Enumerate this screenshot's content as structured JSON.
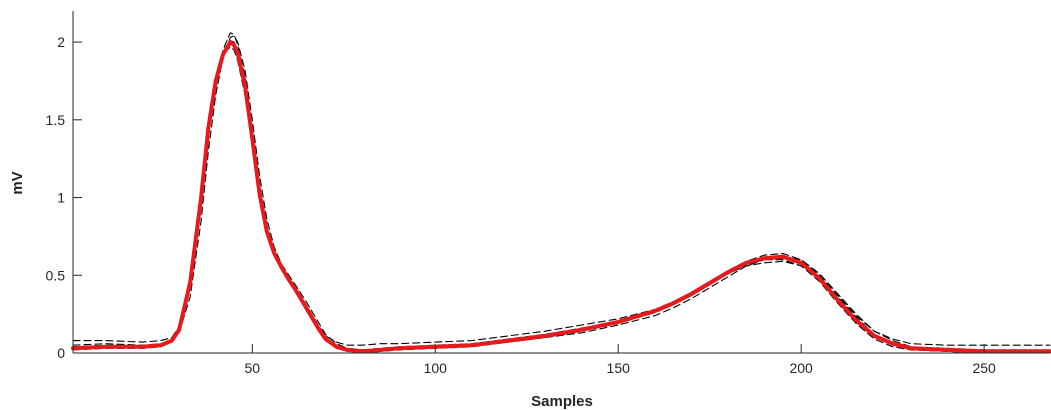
{
  "chart_data": {
    "type": "line",
    "title": "",
    "xlabel": "Samples",
    "ylabel": "mV",
    "xlim": [
      1,
      268
    ],
    "ylim": [
      0,
      2.2
    ],
    "xticks": [
      50,
      100,
      150,
      200,
      250
    ],
    "xtick_labels": [
      "50",
      "100",
      "150",
      "200",
      "250"
    ],
    "yticks": [
      0,
      0.5,
      1,
      1.5,
      2
    ],
    "ytick_labels": [
      "0",
      "0.5",
      "1",
      "1.5",
      "2"
    ],
    "grid": false,
    "legend": "none",
    "colors": {
      "mean": "#e8191d",
      "beats": "#000000",
      "axis": "#262626"
    },
    "series": [
      {
        "style": "solid-red-thick",
        "x": [
          1,
          10,
          20,
          25,
          28,
          30,
          33,
          36,
          38,
          40,
          42,
          44,
          45,
          46,
          48,
          50,
          52,
          54,
          56,
          58,
          60,
          62,
          65,
          68,
          70,
          73,
          76,
          80,
          85,
          90,
          100,
          110,
          120,
          130,
          140,
          150,
          160,
          165,
          170,
          175,
          180,
          185,
          190,
          195,
          200,
          205,
          210,
          215,
          220,
          225,
          230,
          240,
          250,
          260,
          268
        ],
        "y": [
          0.03,
          0.04,
          0.04,
          0.05,
          0.08,
          0.15,
          0.45,
          1.0,
          1.45,
          1.75,
          1.92,
          2.0,
          1.98,
          1.93,
          1.72,
          1.38,
          1.02,
          0.78,
          0.64,
          0.55,
          0.47,
          0.4,
          0.28,
          0.16,
          0.09,
          0.04,
          0.02,
          0.01,
          0.02,
          0.03,
          0.04,
          0.05,
          0.08,
          0.11,
          0.15,
          0.2,
          0.27,
          0.32,
          0.38,
          0.45,
          0.52,
          0.58,
          0.61,
          0.62,
          0.58,
          0.48,
          0.34,
          0.21,
          0.11,
          0.06,
          0.03,
          0.02,
          0.01,
          0.01,
          0.01
        ]
      },
      {
        "style": "dashed-black",
        "x": [
          1,
          10,
          20,
          25,
          28,
          30,
          33,
          36,
          38,
          40,
          42,
          44,
          45,
          46,
          48,
          50,
          52,
          54,
          56,
          58,
          60,
          62,
          65,
          68,
          70,
          73,
          76,
          80,
          85,
          90,
          100,
          110,
          120,
          130,
          140,
          150,
          160,
          165,
          170,
          175,
          180,
          185,
          190,
          195,
          200,
          205,
          210,
          215,
          220,
          225,
          230,
          240,
          250,
          260,
          268
        ],
        "y": [
          0.08,
          0.08,
          0.07,
          0.08,
          0.1,
          0.17,
          0.44,
          0.95,
          1.4,
          1.72,
          1.95,
          2.06,
          2.05,
          1.98,
          1.78,
          1.44,
          1.08,
          0.82,
          0.66,
          0.56,
          0.48,
          0.41,
          0.3,
          0.18,
          0.11,
          0.07,
          0.05,
          0.05,
          0.06,
          0.06,
          0.07,
          0.08,
          0.11,
          0.14,
          0.18,
          0.22,
          0.28,
          0.33,
          0.39,
          0.46,
          0.53,
          0.59,
          0.63,
          0.64,
          0.6,
          0.5,
          0.37,
          0.24,
          0.14,
          0.09,
          0.06,
          0.05,
          0.05,
          0.05,
          0.05
        ]
      },
      {
        "style": "dashed-black",
        "x": [
          1,
          10,
          20,
          25,
          28,
          30,
          33,
          36,
          38,
          40,
          42,
          44,
          45,
          46,
          48,
          50,
          52,
          54,
          56,
          58,
          60,
          62,
          65,
          68,
          70,
          73,
          76,
          80,
          85,
          90,
          100,
          110,
          120,
          130,
          140,
          150,
          160,
          165,
          170,
          175,
          180,
          185,
          190,
          195,
          200,
          205,
          210,
          215,
          220,
          225,
          230,
          240,
          250,
          260,
          268
        ],
        "y": [
          0.05,
          0.06,
          0.05,
          0.06,
          0.08,
          0.13,
          0.36,
          0.85,
          1.3,
          1.66,
          1.9,
          2.03,
          2.04,
          2.0,
          1.82,
          1.5,
          1.14,
          0.86,
          0.68,
          0.57,
          0.5,
          0.43,
          0.32,
          0.2,
          0.12,
          0.06,
          0.03,
          0.02,
          0.02,
          0.03,
          0.03,
          0.05,
          0.07,
          0.1,
          0.13,
          0.18,
          0.24,
          0.29,
          0.35,
          0.42,
          0.49,
          0.56,
          0.6,
          0.62,
          0.6,
          0.51,
          0.38,
          0.25,
          0.14,
          0.08,
          0.04,
          0.03,
          0.02,
          0.02,
          0.02
        ]
      },
      {
        "style": "dashed-black",
        "x": [
          1,
          10,
          20,
          25,
          28,
          30,
          33,
          36,
          38,
          40,
          42,
          44,
          45,
          46,
          48,
          50,
          52,
          54,
          56,
          58,
          60,
          62,
          65,
          68,
          70,
          73,
          76,
          80,
          85,
          90,
          100,
          110,
          120,
          130,
          140,
          150,
          160,
          165,
          170,
          175,
          180,
          185,
          190,
          195,
          200,
          205,
          210,
          215,
          220,
          225,
          230,
          240,
          250,
          260,
          268
        ],
        "y": [
          0.02,
          0.03,
          0.03,
          0.04,
          0.07,
          0.16,
          0.5,
          1.05,
          1.5,
          1.78,
          1.92,
          1.97,
          1.95,
          1.88,
          1.66,
          1.32,
          0.98,
          0.76,
          0.63,
          0.55,
          0.47,
          0.39,
          0.27,
          0.15,
          0.08,
          0.03,
          0.01,
          0.0,
          0.01,
          0.02,
          0.03,
          0.04,
          0.07,
          0.1,
          0.14,
          0.19,
          0.26,
          0.31,
          0.37,
          0.44,
          0.51,
          0.57,
          0.6,
          0.6,
          0.56,
          0.46,
          0.32,
          0.19,
          0.09,
          0.04,
          0.02,
          0.01,
          0.0,
          0.0,
          0.0
        ]
      },
      {
        "style": "dashed-black",
        "x": [
          1,
          10,
          20,
          25,
          28,
          30,
          33,
          36,
          38,
          40,
          42,
          44,
          45,
          46,
          48,
          50,
          52,
          54,
          56,
          58,
          60,
          62,
          65,
          68,
          70,
          73,
          76,
          80,
          85,
          90,
          100,
          110,
          120,
          130,
          140,
          150,
          160,
          165,
          170,
          175,
          180,
          185,
          190,
          195,
          200,
          205,
          210,
          215,
          220,
          225,
          230,
          240,
          250,
          260,
          268
        ],
        "y": [
          0.04,
          0.05,
          0.05,
          0.05,
          0.08,
          0.15,
          0.46,
          1.02,
          1.47,
          1.76,
          1.92,
          1.99,
          1.98,
          1.94,
          1.75,
          1.42,
          1.06,
          0.8,
          0.65,
          0.56,
          0.48,
          0.41,
          0.29,
          0.17,
          0.1,
          0.05,
          0.03,
          0.02,
          0.03,
          0.04,
          0.05,
          0.06,
          0.09,
          0.12,
          0.16,
          0.2,
          0.27,
          0.31,
          0.37,
          0.44,
          0.51,
          0.56,
          0.58,
          0.59,
          0.56,
          0.48,
          0.36,
          0.23,
          0.12,
          0.06,
          0.03,
          0.02,
          0.02,
          0.02,
          0.02
        ]
      },
      {
        "style": "solid-black",
        "x": [
          1,
          10,
          20,
          25,
          28,
          30,
          33,
          36,
          38,
          40,
          42,
          44,
          45,
          46,
          48,
          50,
          52,
          54,
          56,
          58,
          60,
          62,
          65,
          68,
          70,
          73,
          76,
          80,
          85,
          90,
          100,
          110,
          120,
          130,
          140,
          150,
          160,
          165,
          170,
          175,
          180,
          185,
          190,
          195,
          200,
          205,
          210,
          215,
          220,
          225,
          230,
          240,
          250,
          260,
          268
        ],
        "y": [
          0.03,
          0.04,
          0.04,
          0.05,
          0.08,
          0.15,
          0.44,
          0.98,
          1.43,
          1.74,
          1.92,
          2.01,
          2.0,
          1.95,
          1.74,
          1.4,
          1.04,
          0.79,
          0.65,
          0.55,
          0.47,
          0.4,
          0.28,
          0.16,
          0.09,
          0.04,
          0.02,
          0.01,
          0.02,
          0.03,
          0.04,
          0.05,
          0.08,
          0.11,
          0.15,
          0.2,
          0.26,
          0.31,
          0.37,
          0.44,
          0.51,
          0.57,
          0.6,
          0.61,
          0.58,
          0.49,
          0.35,
          0.22,
          0.11,
          0.06,
          0.03,
          0.02,
          0.01,
          0.01,
          0.01
        ]
      }
    ]
  }
}
